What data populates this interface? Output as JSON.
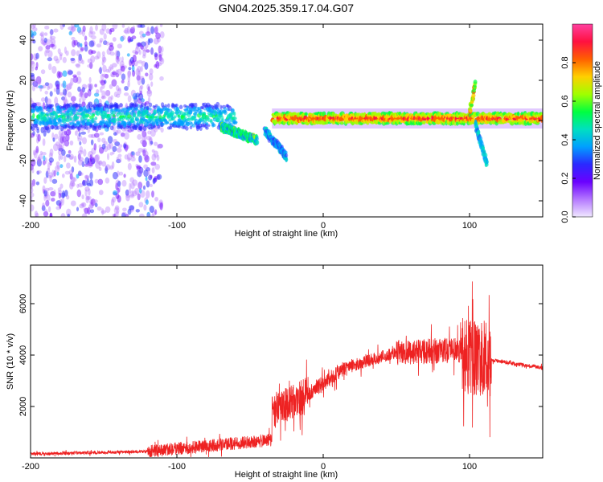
{
  "title": "GN04.2025.359.17.04.G07",
  "chart_data": [
    {
      "type": "heatmap",
      "name": "spectrogram",
      "xlabel": "Height of straight line (km)",
      "ylabel": "Frequency (Hz)",
      "xlim": [
        -200,
        150
      ],
      "ylim": [
        -48,
        48
      ],
      "x_ticks": [
        -200,
        -100,
        0,
        100
      ],
      "y_ticks": [
        -40,
        -20,
        0,
        20,
        40
      ],
      "colorbar": {
        "label": "Normalized spectral amplitude",
        "range": [
          0,
          1
        ],
        "ticks": [
          "0.0",
          "0.2",
          "0.4",
          "0.6",
          "0.8"
        ],
        "tick_values": [
          0.0,
          0.2,
          0.4,
          0.6,
          0.8
        ],
        "colormap": [
          "#f0e8ff",
          "#b478ff",
          "#6a00ff",
          "#2a2aff",
          "#00a0ff",
          "#00e0c0",
          "#00ff40",
          "#a0ff00",
          "#ffd000",
          "#ff6000",
          "#ff1040",
          "#ff40a0"
        ]
      },
      "features": [
        {
          "label": "scattered noise",
          "x_range": [
            -200,
            -110
          ],
          "freq_range": [
            -48,
            48
          ],
          "amplitude": [
            0.05,
            0.35
          ]
        },
        {
          "label": "central band",
          "x_range": [
            -200,
            -60
          ],
          "freq_center": 2,
          "freq_halfwidth": 6,
          "amplitude": [
            0.25,
            0.55
          ]
        },
        {
          "label": "descending band",
          "x_range": [
            -70,
            -45
          ],
          "freq_start": -3,
          "freq_end": -10,
          "amplitude": [
            0.3,
            0.6
          ]
        },
        {
          "label": "descending branch",
          "x_range": [
            -40,
            -25
          ],
          "freq_start": -5,
          "freq_end": -18,
          "amplitude": [
            0.25,
            0.45
          ]
        },
        {
          "label": "stable carrier",
          "x_range": [
            -35,
            150
          ],
          "freq_center": 1,
          "freq_halfwidth": 2.5,
          "amplitude": [
            0.55,
            0.95
          ]
        },
        {
          "label": "spike up",
          "x_range": [
            100,
            104
          ],
          "freq_start": 4,
          "freq_end": 18,
          "amplitude": [
            0.5,
            0.8
          ]
        },
        {
          "label": "spike down",
          "x_range": [
            104,
            112
          ],
          "freq_start": -2,
          "freq_end": -22,
          "amplitude": [
            0.3,
            0.5
          ]
        }
      ]
    },
    {
      "type": "line",
      "name": "snr",
      "xlabel": "Height of straight line (km)",
      "ylabel": "SNR (10 * v/v)",
      "xlim": [
        -200,
        150
      ],
      "ylim": [
        0,
        7500
      ],
      "x_ticks": [
        -200,
        -100,
        0,
        100
      ],
      "y_ticks": [
        2000,
        4000,
        6000
      ],
      "color": "#ee2222",
      "segments": [
        {
          "x": [
            -200,
            -120
          ],
          "base": [
            150,
            250
          ],
          "noise": 120
        },
        {
          "x": [
            -120,
            -35
          ],
          "base": [
            250,
            700
          ],
          "noise": 500
        },
        {
          "x": [
            -35,
            -10
          ],
          "base": [
            1800,
            2500
          ],
          "noise": 1400
        },
        {
          "x": [
            -10,
            15
          ],
          "base": [
            2500,
            3500
          ],
          "noise": 600
        },
        {
          "x": [
            15,
            50
          ],
          "base": [
            3500,
            4100
          ],
          "noise": 500
        },
        {
          "x": [
            50,
            95
          ],
          "base": [
            4100,
            4200
          ],
          "noise": 1000
        },
        {
          "x": [
            95,
            115
          ],
          "base": [
            4000,
            3800
          ],
          "noise": 3000
        },
        {
          "x": [
            115,
            150
          ],
          "base": [
            3800,
            3500
          ],
          "noise": 150
        }
      ]
    }
  ]
}
